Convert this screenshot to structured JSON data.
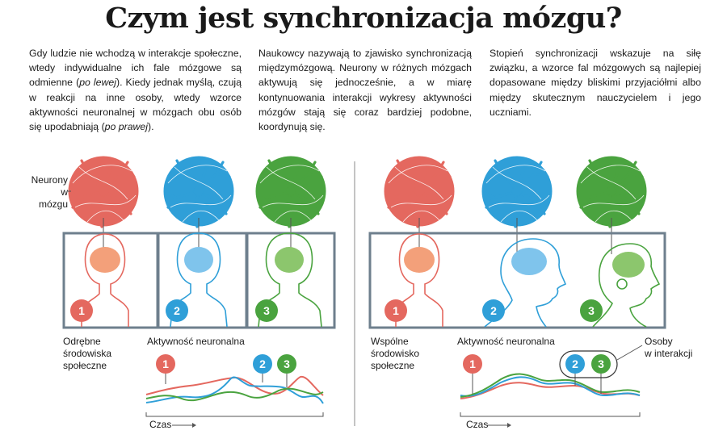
{
  "title": "Czym jest synchronizacja mózgu?",
  "columns": [
    {
      "p1": "Gdy ludzie nie wchodzą w interakcje społeczne, wtedy indywidualne ich fale mózgowe są odmienne (",
      "em1": "po lewej",
      "p2": "). Kiedy jednak myślą, czują w reakcji na inne osoby, wtedy wzorce aktywności neuronalnej w mózgach obu osób się upodabniają (",
      "em2": "po prawej",
      "p3": ")."
    },
    {
      "text": "Naukowcy nazywają to zjawisko synchronizacją międzymózgową. Neurony w różnych mózgach aktywują się jednocześnie, a w miarę kontynuowania interakcji wykresy aktywności mózgów stają się coraz bardziej podobne, koordynują się."
    },
    {
      "text": "Stopień synchronizacji wskazuje na siłę związku, a wzorce fal mózgowych są najlepiej dopasowane między bliskimi przyjaciółmi albo między skutecznym nauczycielem i jego uczniami."
    }
  ],
  "labels": {
    "neurons": [
      "Neurony",
      "w mózgu"
    ],
    "left_env": [
      "Odrębne",
      "środowiska",
      "społeczne"
    ],
    "right_env": [
      "Wspólne",
      "środowisko",
      "społeczne"
    ],
    "activity": "Aktywność neuronalna",
    "time": "Czas",
    "interacting": [
      "Osoby",
      "w interakcji"
    ]
  },
  "people": [
    {
      "number": "1",
      "color": "#e4685f"
    },
    {
      "number": "2",
      "color": "#2f9fd8"
    },
    {
      "number": "3",
      "color": "#4aa33f"
    }
  ],
  "colors": {
    "frame": "#6e7f8d",
    "neuron_bg": [
      "#f6c4b4",
      "#bfe0f4",
      "#c8e4b8"
    ]
  }
}
